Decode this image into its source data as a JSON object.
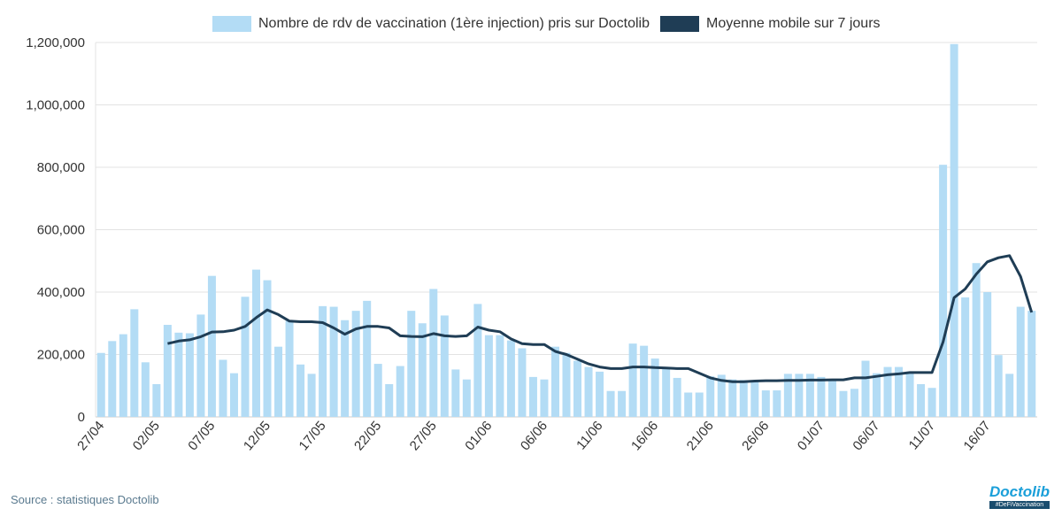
{
  "legend": {
    "bars": "Nombre de rdv de vaccination (1ère injection) pris sur Doctolib",
    "line": "Moyenne mobile sur 7 jours"
  },
  "source": "Source : statistiques Doctolib",
  "logo": {
    "name": "Doctolib",
    "tag": "#DeFiVaccination"
  },
  "colors": {
    "bars": "#b3dcf5",
    "line": "#1f3d55"
  },
  "chart_data": {
    "type": "bar",
    "title": "",
    "xlabel": "",
    "ylabel": "",
    "ylim": [
      0,
      1200000
    ],
    "yticks": [
      0,
      200000,
      400000,
      600000,
      800000,
      1000000,
      1200000
    ],
    "ytick_labels": [
      "0",
      "200,000",
      "400,000",
      "600,000",
      "800,000",
      "1,000,000",
      "1,200,000"
    ],
    "xtick_labels": [
      "27/04",
      "02/05",
      "07/05",
      "12/05",
      "17/05",
      "22/05",
      "27/05",
      "01/06",
      "06/06",
      "11/06",
      "16/06",
      "21/06",
      "26/06",
      "01/07",
      "06/07",
      "11/07",
      "16/07"
    ],
    "xtick_every": 5,
    "grid": true,
    "legend_position": "top",
    "series": [
      {
        "name": "Nombre de rdv de vaccination (1ère injection) pris sur Doctolib",
        "type": "bar",
        "start_index": 0,
        "values": [
          205000,
          243000,
          265000,
          345000,
          175000,
          105000,
          295000,
          270000,
          268000,
          328000,
          452000,
          183000,
          140000,
          385000,
          472000,
          438000,
          225000,
          308000,
          168000,
          138000,
          355000,
          353000,
          310000,
          340000,
          372000,
          170000,
          105000,
          163000,
          340000,
          300000,
          410000,
          325000,
          152000,
          120000,
          362000,
          262000,
          262000,
          245000,
          220000,
          128000,
          120000,
          225000,
          205000,
          180000,
          160000,
          145000,
          83000,
          83000,
          235000,
          228000,
          187000,
          155000,
          125000,
          78000,
          78000,
          130000,
          135000,
          120000,
          118000,
          112000,
          85000,
          85000,
          138000,
          138000,
          138000,
          128000,
          115000,
          83000,
          90000,
          180000,
          140000,
          160000,
          160000,
          145000,
          105000,
          93000,
          808000,
          1195000,
          383000,
          493000,
          400000,
          198000,
          138000,
          353000,
          340000
        ]
      },
      {
        "name": "Moyenne mobile sur 7 jours",
        "type": "line",
        "start_index": 6,
        "values": [
          235000,
          243000,
          247000,
          257000,
          272000,
          273000,
          278000,
          290000,
          318000,
          343000,
          328000,
          307000,
          305000,
          305000,
          302000,
          285000,
          265000,
          282000,
          290000,
          290000,
          285000,
          260000,
          258000,
          257000,
          267000,
          260000,
          258000,
          260000,
          288000,
          278000,
          273000,
          250000,
          235000,
          232000,
          232000,
          210000,
          200000,
          185000,
          170000,
          160000,
          155000,
          155000,
          160000,
          160000,
          158000,
          157000,
          155000,
          155000,
          140000,
          125000,
          117000,
          113000,
          113000,
          115000,
          116000,
          116000,
          117000,
          117000,
          118000,
          118000,
          119000,
          119000,
          125000,
          125000,
          130000,
          135000,
          138000,
          142000,
          142000,
          142000,
          240000,
          382000,
          410000,
          458000,
          497000,
          510000,
          517000,
          450000,
          335000
        ]
      }
    ]
  }
}
